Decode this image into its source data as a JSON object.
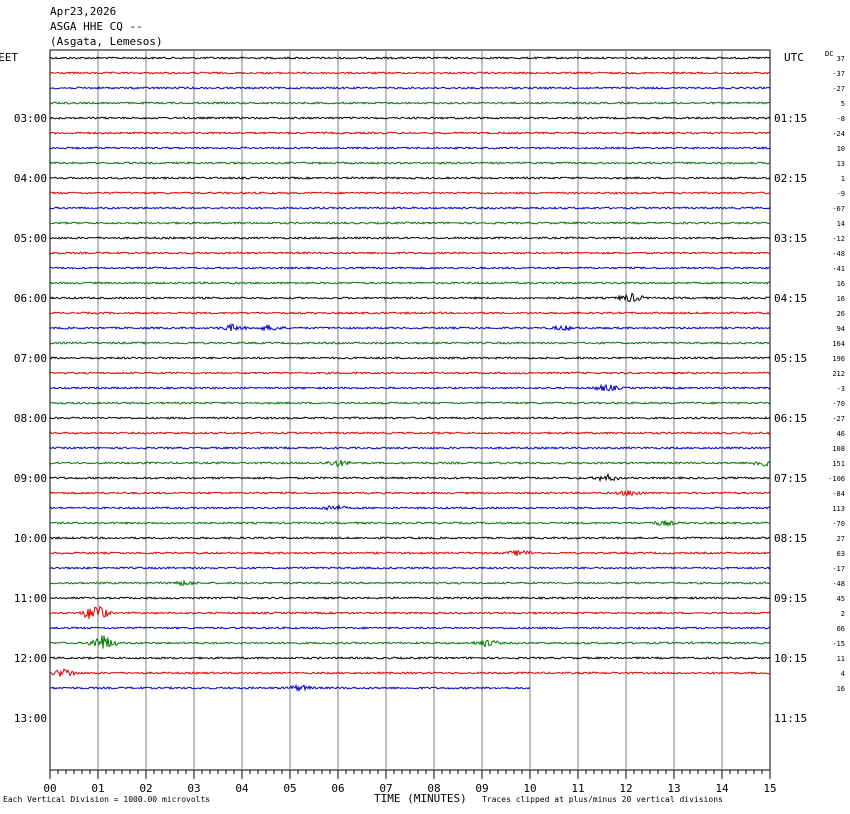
{
  "header": {
    "date": "Apr23,2026",
    "station": "ASGA HHE CQ --",
    "location": "(Asgata, Lemesos)"
  },
  "left_tz": "EET",
  "right_tz": "UTC",
  "dc_label": "DC",
  "chart_data": {
    "type": "line",
    "title": "",
    "xlabel": "TIME (MINUTES)",
    "x_ticks": [
      "00",
      "01",
      "02",
      "03",
      "04",
      "05",
      "06",
      "07",
      "08",
      "09",
      "10",
      "11",
      "12",
      "13",
      "14",
      "15"
    ],
    "xlim": [
      0,
      15
    ],
    "rows_per_hour": 4,
    "trace_count": 43,
    "last_trace_end_minute": 10.0,
    "left_hour_labels": [
      "03:00",
      "04:00",
      "05:00",
      "06:00",
      "07:00",
      "08:00",
      "09:00",
      "10:00",
      "11:00",
      "12:00",
      "13:00"
    ],
    "right_hour_labels": [
      "01:15",
      "02:15",
      "03:15",
      "04:15",
      "05:15",
      "06:15",
      "07:15",
      "08:15",
      "09:15",
      "10:15",
      "11:15"
    ],
    "trace_colors": [
      "#000000",
      "#e00000",
      "#0000cc",
      "#007a00"
    ],
    "dc_offsets": [
      "37",
      "-37",
      "-27",
      "5",
      "-8",
      "-24",
      "10",
      "13",
      "1",
      "-9",
      "-67",
      "14",
      "-12",
      "-48",
      "-41",
      "16",
      "16",
      "26",
      "94",
      "164",
      "196",
      "212",
      "-3",
      "-70",
      "-27",
      "46",
      "108",
      "151",
      "-106",
      "-84",
      "113",
      "-70",
      "27",
      "63",
      "-17",
      "-48",
      "45",
      "2",
      "66",
      "-15",
      "11",
      "4",
      "16"
    ],
    "events": [
      {
        "row": 16,
        "minute": 12.1,
        "amp": 4
      },
      {
        "row": 18,
        "minute": 3.8,
        "amp": 3
      },
      {
        "row": 18,
        "minute": 4.6,
        "amp": 2.5
      },
      {
        "row": 18,
        "minute": 10.7,
        "amp": 2
      },
      {
        "row": 22,
        "minute": 11.6,
        "amp": 3
      },
      {
        "row": 27,
        "minute": 6.0,
        "amp": 3
      },
      {
        "row": 27,
        "minute": 14.9,
        "amp": 4
      },
      {
        "row": 28,
        "minute": 11.6,
        "amp": 3
      },
      {
        "row": 29,
        "minute": 12.1,
        "amp": 2.5
      },
      {
        "row": 30,
        "minute": 5.9,
        "amp": 2.5
      },
      {
        "row": 31,
        "minute": 12.8,
        "amp": 2
      },
      {
        "row": 33,
        "minute": 9.8,
        "amp": 2.5
      },
      {
        "row": 35,
        "minute": 2.8,
        "amp": 2
      },
      {
        "row": 37,
        "minute": 0.95,
        "amp": 9
      },
      {
        "row": 39,
        "minute": 1.1,
        "amp": 8
      },
      {
        "row": 39,
        "minute": 9.1,
        "amp": 3
      },
      {
        "row": 41,
        "minute": 0.3,
        "amp": 4
      },
      {
        "row": 42,
        "minute": 5.2,
        "amp": 2.5
      }
    ],
    "scale_note": "Each Vertical Division = 1000.00 microvolts",
    "clip_note": "Traces clipped at plus/minus 20 vertical divisions"
  }
}
